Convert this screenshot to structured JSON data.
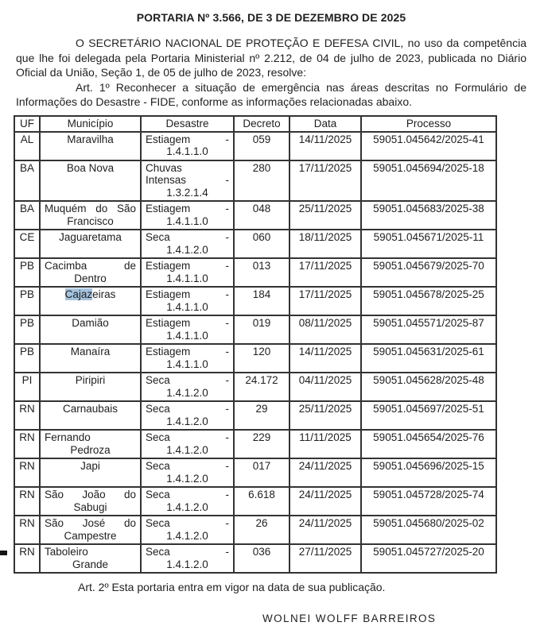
{
  "document": {
    "title": "PORTARIA Nº 3.566, DE 3 DE DEZEMBRO DE 2025",
    "paragraph1": "O SECRETÁRIO NACIONAL DE PROTEÇÃO E DEFESA CIVIL, no uso da competência que lhe foi delegada pela Portaria Ministerial nº 2.212, de 04 de julho de 2023, publicada no Diário Oficial da União, Seção 1, de 05 de julho de 2023, resolve:",
    "paragraph2": "Art. 1º Reconhecer a situação de emergência nas áreas descritas no Formulário de Informações do Desastre - FIDE, conforme as informações relacionadas abaixo.",
    "closing": "Art. 2º Esta portaria entra em vigor na data de sua publicação.",
    "signature": "WOLNEI WOLFF BARREIROS"
  },
  "colors": {
    "selection_highlight": "#a5c3de",
    "table_border": "#333333"
  },
  "table": {
    "headers": [
      "UF",
      "Município",
      "Desastre",
      "Decreto",
      "Data",
      "Processo"
    ],
    "rows": [
      {
        "uf": "AL",
        "municipio": [
          {
            "align": "center",
            "text": "Maravilha"
          }
        ],
        "desastre": [
          {
            "align": "spread",
            "text": "Estiagem -"
          },
          {
            "align": "center",
            "text": "1.4.1.1.0"
          }
        ],
        "decreto": "059",
        "data": "14/11/2025",
        "processo": "59051.045642/2025-41"
      },
      {
        "uf": "BA",
        "municipio": [
          {
            "align": "center",
            "text": "Boa Nova"
          }
        ],
        "desastre": [
          {
            "align": "left",
            "text": "Chuvas"
          },
          {
            "align": "spread",
            "text": "Intensas -"
          },
          {
            "align": "center",
            "text": "1.3.2.1.4"
          }
        ],
        "decreto": "280",
        "data": "17/11/2025",
        "processo": "59051.045694/2025-18"
      },
      {
        "uf": "BA",
        "municipio": [
          {
            "align": "spread",
            "text": "Muquém do São"
          },
          {
            "align": "center",
            "text": "Francisco"
          }
        ],
        "desastre": [
          {
            "align": "spread",
            "text": "Estiagem -"
          },
          {
            "align": "center",
            "text": "1.4.1.1.0"
          }
        ],
        "decreto": "048",
        "data": "25/11/2025",
        "processo": "59051.045683/2025-38"
      },
      {
        "uf": "CE",
        "municipio": [
          {
            "align": "center",
            "text": "Jaguaretama"
          }
        ],
        "desastre": [
          {
            "align": "spread",
            "text": "Seca -"
          },
          {
            "align": "center",
            "text": "1.4.1.2.0"
          }
        ],
        "decreto": "060",
        "data": "18/11/2025",
        "processo": "59051.045671/2025-11"
      },
      {
        "uf": "PB",
        "municipio": [
          {
            "align": "spread",
            "text": "Cacimba de"
          },
          {
            "align": "center",
            "text": "Dentro"
          }
        ],
        "desastre": [
          {
            "align": "spread",
            "text": "Estiagem -"
          },
          {
            "align": "center",
            "text": "1.4.1.1.0"
          }
        ],
        "decreto": "013",
        "data": "17/11/2025",
        "processo": "59051.045679/2025-70"
      },
      {
        "uf": "PB",
        "municipio": [
          {
            "align": "center",
            "parts": [
              {
                "t": "Cajaz",
                "hl": true
              },
              {
                "t": "eiras"
              }
            ]
          }
        ],
        "desastre": [
          {
            "align": "spread",
            "text": "Estiagem -"
          },
          {
            "align": "center",
            "text": "1.4.1.1.0"
          }
        ],
        "decreto": "184",
        "data": "17/11/2025",
        "processo": "59051.045678/2025-25"
      },
      {
        "uf": "PB",
        "municipio": [
          {
            "align": "center",
            "text": "Damião"
          }
        ],
        "desastre": [
          {
            "align": "spread",
            "text": "Estiagem -"
          },
          {
            "align": "center",
            "text": "1.4.1.1.0"
          }
        ],
        "decreto": "019",
        "data": "08/11/2025",
        "processo": "59051.045571/2025-87"
      },
      {
        "uf": "PB",
        "municipio": [
          {
            "align": "center",
            "text": "Manaíra"
          }
        ],
        "desastre": [
          {
            "align": "spread",
            "text": "Estiagem -"
          },
          {
            "align": "center",
            "text": "1.4.1.1.0"
          }
        ],
        "decreto": "120",
        "data": "14/11/2025",
        "processo": "59051.045631/2025-61"
      },
      {
        "uf": "PI",
        "municipio": [
          {
            "align": "center",
            "text": "Piripiri"
          }
        ],
        "desastre": [
          {
            "align": "spread",
            "text": "Seca -"
          },
          {
            "align": "center",
            "text": "1.4.1.2.0"
          }
        ],
        "decreto": "24.172",
        "data": "04/11/2025",
        "processo": "59051.045628/2025-48"
      },
      {
        "uf": "RN",
        "municipio": [
          {
            "align": "center",
            "text": "Carnaubais"
          }
        ],
        "desastre": [
          {
            "align": "spread",
            "text": "Seca -"
          },
          {
            "align": "center",
            "text": "1.4.1.2.0"
          }
        ],
        "decreto": "29",
        "data": "25/11/2025",
        "processo": "59051.045697/2025-51"
      },
      {
        "uf": "RN",
        "municipio": [
          {
            "align": "left",
            "text": "Fernando"
          },
          {
            "align": "center",
            "text": "Pedroza"
          }
        ],
        "desastre": [
          {
            "align": "spread",
            "text": "Seca -"
          },
          {
            "align": "center",
            "text": "1.4.1.2.0"
          }
        ],
        "decreto": "229",
        "data": "11/11/2025",
        "processo": "59051.045654/2025-76"
      },
      {
        "uf": "RN",
        "municipio": [
          {
            "align": "center",
            "text": "Japi"
          }
        ],
        "desastre": [
          {
            "align": "spread",
            "text": "Seca -"
          },
          {
            "align": "center",
            "text": "1.4.1.2.0"
          }
        ],
        "decreto": "017",
        "data": "24/11/2025",
        "processo": "59051.045696/2025-15"
      },
      {
        "uf": "RN",
        "municipio": [
          {
            "align": "spread",
            "text": "São João do"
          },
          {
            "align": "center",
            "text": "Sabugi"
          }
        ],
        "desastre": [
          {
            "align": "spread",
            "text": "Seca -"
          },
          {
            "align": "center",
            "text": "1.4.1.2.0"
          }
        ],
        "decreto": "6.618",
        "data": "24/11/2025",
        "processo": "59051.045728/2025-74"
      },
      {
        "uf": "RN",
        "municipio": [
          {
            "align": "spread",
            "text": "São José do"
          },
          {
            "align": "center",
            "text": "Campestre"
          }
        ],
        "desastre": [
          {
            "align": "spread",
            "text": "Seca -"
          },
          {
            "align": "center",
            "text": "1.4.1.2.0"
          }
        ],
        "decreto": "26",
        "data": "24/11/2025",
        "processo": "59051.045680/2025-02"
      },
      {
        "uf": "RN",
        "municipio": [
          {
            "align": "left",
            "text": "Taboleiro"
          },
          {
            "align": "center",
            "text": "Grande"
          }
        ],
        "desastre": [
          {
            "align": "spread",
            "text": "Seca -"
          },
          {
            "align": "center",
            "text": "1.4.1.2.0"
          }
        ],
        "decreto": "036",
        "data": "27/11/2025",
        "processo": "59051.045727/2025-20"
      }
    ]
  }
}
